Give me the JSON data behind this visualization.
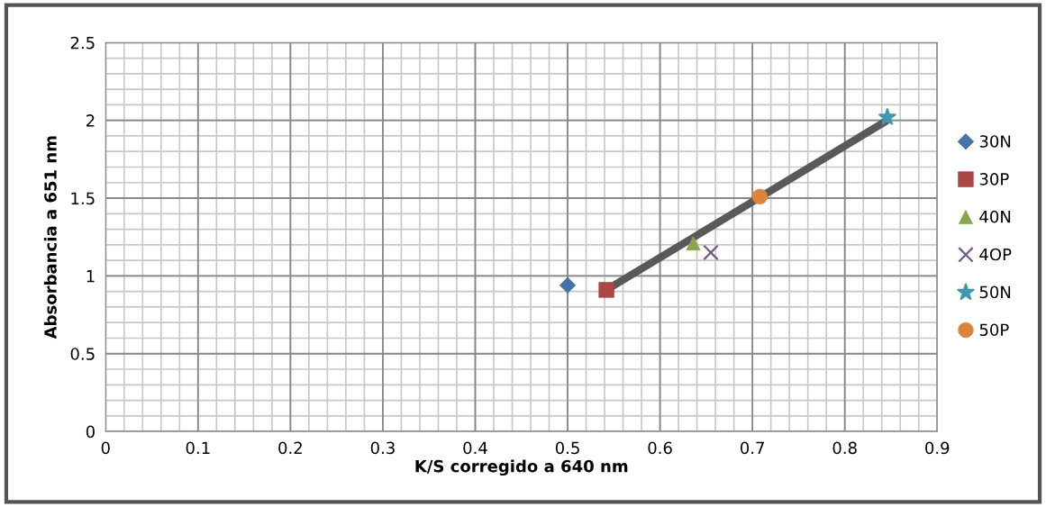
{
  "chart_data": {
    "type": "scatter",
    "xlabel": "K/S corregido a 640 nm",
    "ylabel": "Absorbancia a 651 nm",
    "xlim": [
      0,
      0.9
    ],
    "xticks": [
      0,
      0.1,
      0.2,
      0.3,
      0.4,
      0.5,
      0.6,
      0.7,
      0.8,
      0.9
    ],
    "ylim": [
      0,
      2.5
    ],
    "yticks": [
      0,
      0.5,
      1,
      1.5,
      2,
      2.5
    ],
    "grid": true,
    "legend": "right",
    "series": [
      {
        "name": "30N",
        "color": "#4572a7",
        "marker": "diamond",
        "x": [
          0.5
        ],
        "values": [
          0.94
        ]
      },
      {
        "name": "30P",
        "color": "#aa4643",
        "marker": "square",
        "x": [
          0.542
        ],
        "values": [
          0.91
        ]
      },
      {
        "name": "40N",
        "color": "#89a54e",
        "marker": "triangle",
        "x": [
          0.636
        ],
        "values": [
          1.21
        ]
      },
      {
        "name": "4OP",
        "color": "#71588f",
        "marker": "cross",
        "x": [
          0.655
        ],
        "values": [
          1.15
        ]
      },
      {
        "name": "50N",
        "color": "#4198af",
        "marker": "star",
        "x": [
          0.846
        ],
        "values": [
          2.02
        ]
      },
      {
        "name": "50P",
        "color": "#db843d",
        "marker": "circle",
        "x": [
          0.708
        ],
        "values": [
          1.51
        ]
      },
      {
        "type": "line",
        "color": "#595959",
        "marker": "none",
        "x": [
          0.542,
          0.846
        ],
        "values": [
          0.91,
          2.0
        ]
      }
    ]
  }
}
